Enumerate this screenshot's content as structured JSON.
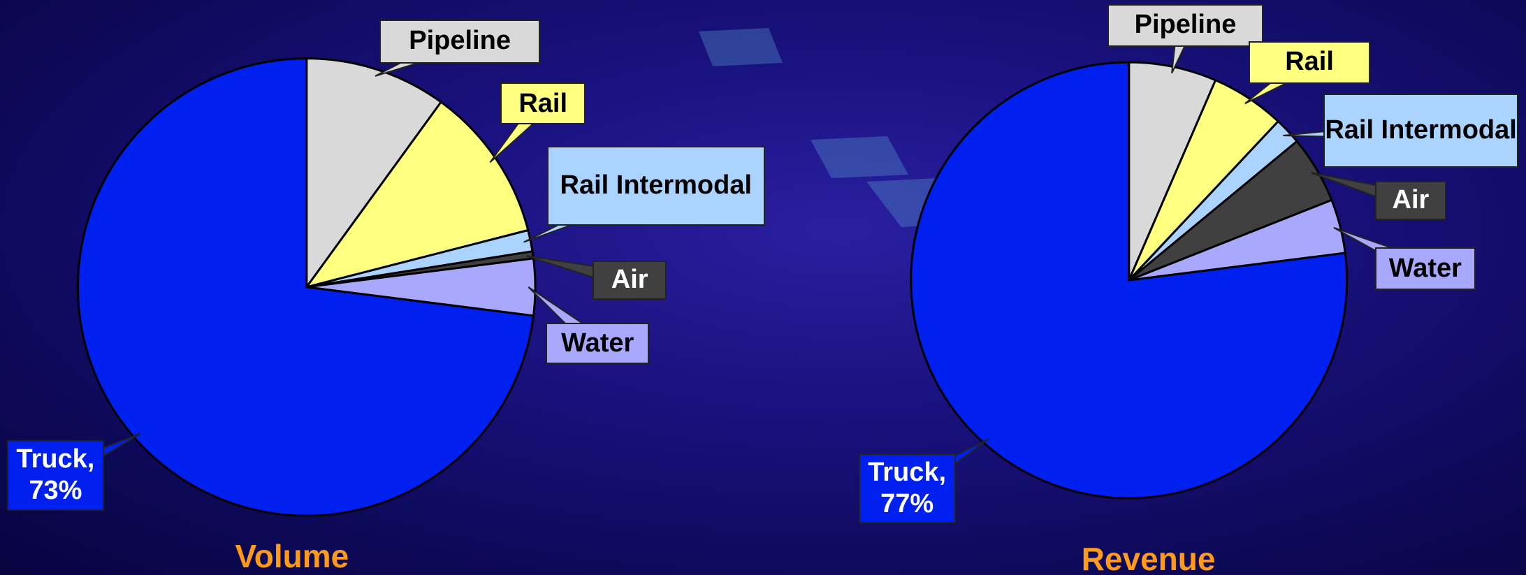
{
  "chart_data": [
    {
      "type": "pie",
      "title": "Volume",
      "categories": [
        "Pipeline",
        "Rail",
        "Rail Intermodal",
        "Air",
        "Water",
        "Truck,"
      ],
      "values": [
        10,
        11,
        1.5,
        0.5,
        4,
        73
      ],
      "value_labels": [
        null,
        null,
        null,
        null,
        null,
        "73%"
      ],
      "colors": [
        "#d9d9d9",
        "#ffff80",
        "#aad4ff",
        "#404040",
        "#a8a8ff",
        "#0020f0"
      ]
    },
    {
      "type": "pie",
      "title": "Revenue",
      "categories": [
        "Pipeline",
        "Rail",
        "Rail Intermodal",
        "Air",
        "Water",
        "Truck,"
      ],
      "values": [
        6.5,
        5.5,
        2,
        5,
        4,
        77
      ],
      "value_labels": [
        null,
        null,
        null,
        null,
        null,
        "77%"
      ],
      "colors": [
        "#d9d9d9",
        "#ffff80",
        "#aad4ff",
        "#404040",
        "#a8a8ff",
        "#0020f0"
      ]
    }
  ]
}
